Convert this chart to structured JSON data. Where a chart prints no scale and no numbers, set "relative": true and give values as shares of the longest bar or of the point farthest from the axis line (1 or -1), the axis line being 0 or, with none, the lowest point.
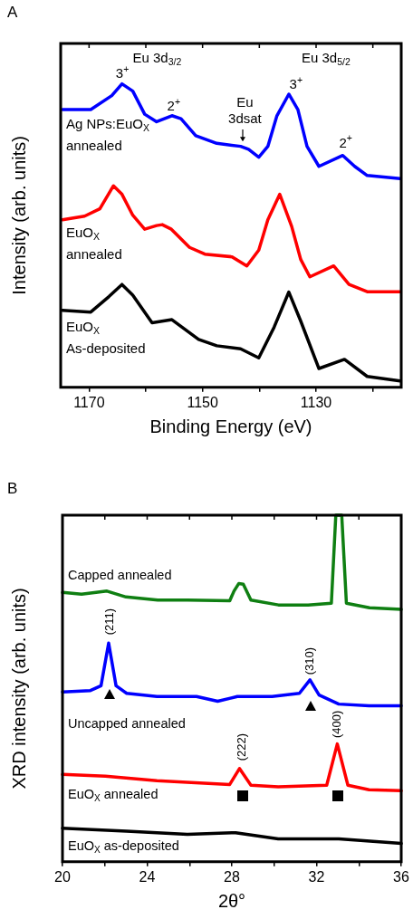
{
  "chart_data": [
    {
      "type": "line",
      "title": "A",
      "xlabel": "Binding Energy (eV)",
      "ylabel": "Intensity (arb. units)",
      "relative": true,
      "xlim": [
        1175,
        1115
      ],
      "xticks": [
        1170,
        {
          "value": 1160,
          "label": null
        },
        1150,
        {
          "value": 1140,
          "label": null
        },
        1130,
        {
          "value": 1120,
          "label": null
        }
      ],
      "series": [
        {
          "name": "Ag NPs:EuO$_{X}$\nannealed",
          "color": "#0000ff",
          "x": [
            1174.7,
            1169.7,
            1166.0,
            1164.2,
            1162.3,
            1160.2,
            1158.1,
            1155.4,
            1153.8,
            1151.2,
            1147.5,
            1143.3,
            1141.9,
            1140.1,
            1138.5,
            1136.9,
            1134.8,
            1133.2,
            1131.6,
            1129.5,
            1125.3,
            1123.2,
            1121.0,
            1115.2
          ],
          "values": [
            0.915,
            0.915,
            0.961,
            1.0,
            0.976,
            0.9,
            0.875,
            0.895,
            0.885,
            0.829,
            0.804,
            0.794,
            0.784,
            0.758,
            0.794,
            0.895,
            0.966,
            0.915,
            0.794,
            0.728,
            0.764,
            0.728,
            0.698,
            0.688
          ]
        },
        {
          "name": "EuO$_{X}$\nannealed",
          "color": "#ff0000",
          "x": [
            1174.7,
            1170.8,
            1168.1,
            1165.7,
            1164.2,
            1162.3,
            1160.2,
            1158.1,
            1157.1,
            1155.5,
            1152.3,
            1149.6,
            1144.8,
            1142.2,
            1140.1,
            1138.5,
            1136.4,
            1134.3,
            1132.7,
            1131.1,
            1126.9,
            1124.2,
            1121.0,
            1115.2
          ],
          "values": [
            0.552,
            0.564,
            0.588,
            0.664,
            0.636,
            0.567,
            0.521,
            0.533,
            0.536,
            0.521,
            0.461,
            0.439,
            0.43,
            0.4,
            0.452,
            0.552,
            0.636,
            0.53,
            0.421,
            0.364,
            0.4,
            0.339,
            0.315,
            0.315
          ]
        },
        {
          "name": "EuO$_{X}$\nAs-deposited",
          "color": "#000000",
          "x": [
            1174.7,
            1169.7,
            1166.5,
            1164.2,
            1162.3,
            1158.9,
            1155.4,
            1150.7,
            1147.5,
            1143.3,
            1140.1,
            1137.4,
            1134.8,
            1132.7,
            1129.5,
            1125.0,
            1121.0,
            1115.2
          ],
          "values": [
            0.254,
            0.248,
            0.299,
            0.339,
            0.304,
            0.213,
            0.223,
            0.158,
            0.137,
            0.127,
            0.097,
            0.198,
            0.314,
            0.218,
            0.062,
            0.092,
            0.036,
            0.021
          ]
        }
      ],
      "annotations": [
        "3$^{+}$",
        "Eu 3d$_{3/2}$",
        "2$^{+}$",
        "Eu\n3dsat",
        "3$^{+}$",
        "Eu 3d$_{5/2}$",
        "2$^{+}$"
      ]
    },
    {
      "type": "line",
      "title": "B",
      "xlabel": "2θ°",
      "ylabel": "XRD intensity (arb. units)",
      "relative": true,
      "xlim": [
        20,
        36
      ],
      "xticks": [
        20,
        {
          "value": 22,
          "label": null
        },
        24,
        {
          "value": 26,
          "label": null
        },
        28,
        {
          "value": 30,
          "label": null
        },
        32,
        {
          "value": 34,
          "label": null
        },
        36
      ],
      "series": [
        {
          "name": "Capped annealed",
          "color": "#0f7f12",
          "x": [
            20.0,
            20.9,
            22.1,
            23.0,
            24.5,
            25.9,
            27.9,
            28.1,
            28.33,
            28.54,
            28.9,
            30.2,
            31.6,
            32.7,
            32.91,
            33.19,
            33.41,
            34.5,
            36.0
          ],
          "values": [
            0.777,
            0.772,
            0.781,
            0.764,
            0.755,
            0.755,
            0.753,
            0.781,
            0.803,
            0.801,
            0.755,
            0.741,
            0.741,
            0.746,
            1.0,
            1.0,
            0.746,
            0.733,
            0.728
          ]
        },
        {
          "name": "Uncapped annealed",
          "color": "#0000ff",
          "x": [
            20.0,
            21.32,
            21.82,
            22.18,
            22.53,
            23.03,
            24.46,
            26.33,
            27.33,
            28.26,
            29.9,
            31.19,
            31.69,
            32.12,
            33.05,
            34.48,
            36.0
          ],
          "values": [
            0.49,
            0.494,
            0.508,
            0.631,
            0.508,
            0.486,
            0.477,
            0.477,
            0.463,
            0.477,
            0.477,
            0.486,
            0.525,
            0.481,
            0.455,
            0.45,
            0.45
          ]
        },
        {
          "name": "EuO$_{X}$ annealed",
          "color": "#ff0000",
          "x": [
            20.0,
            22.03,
            24.46,
            27.9,
            28.36,
            28.9,
            30.19,
            32.48,
            32.98,
            33.48,
            34.48,
            36.0
          ],
          "values": [
            0.252,
            0.247,
            0.234,
            0.223,
            0.269,
            0.221,
            0.216,
            0.221,
            0.34,
            0.221,
            0.208,
            0.205
          ]
        },
        {
          "name": "EuO$_{X}$ as-deposited",
          "color": "#000000",
          "x": [
            20.0,
            23.03,
            25.9,
            28.18,
            30.19,
            33.05,
            36.0
          ],
          "values": [
            0.097,
            0.088,
            0.079,
            0.084,
            0.066,
            0.066,
            0.053
          ]
        }
      ],
      "annotations": [
        "(211)",
        "(310)",
        "(222)",
        "(400)"
      ]
    }
  ]
}
